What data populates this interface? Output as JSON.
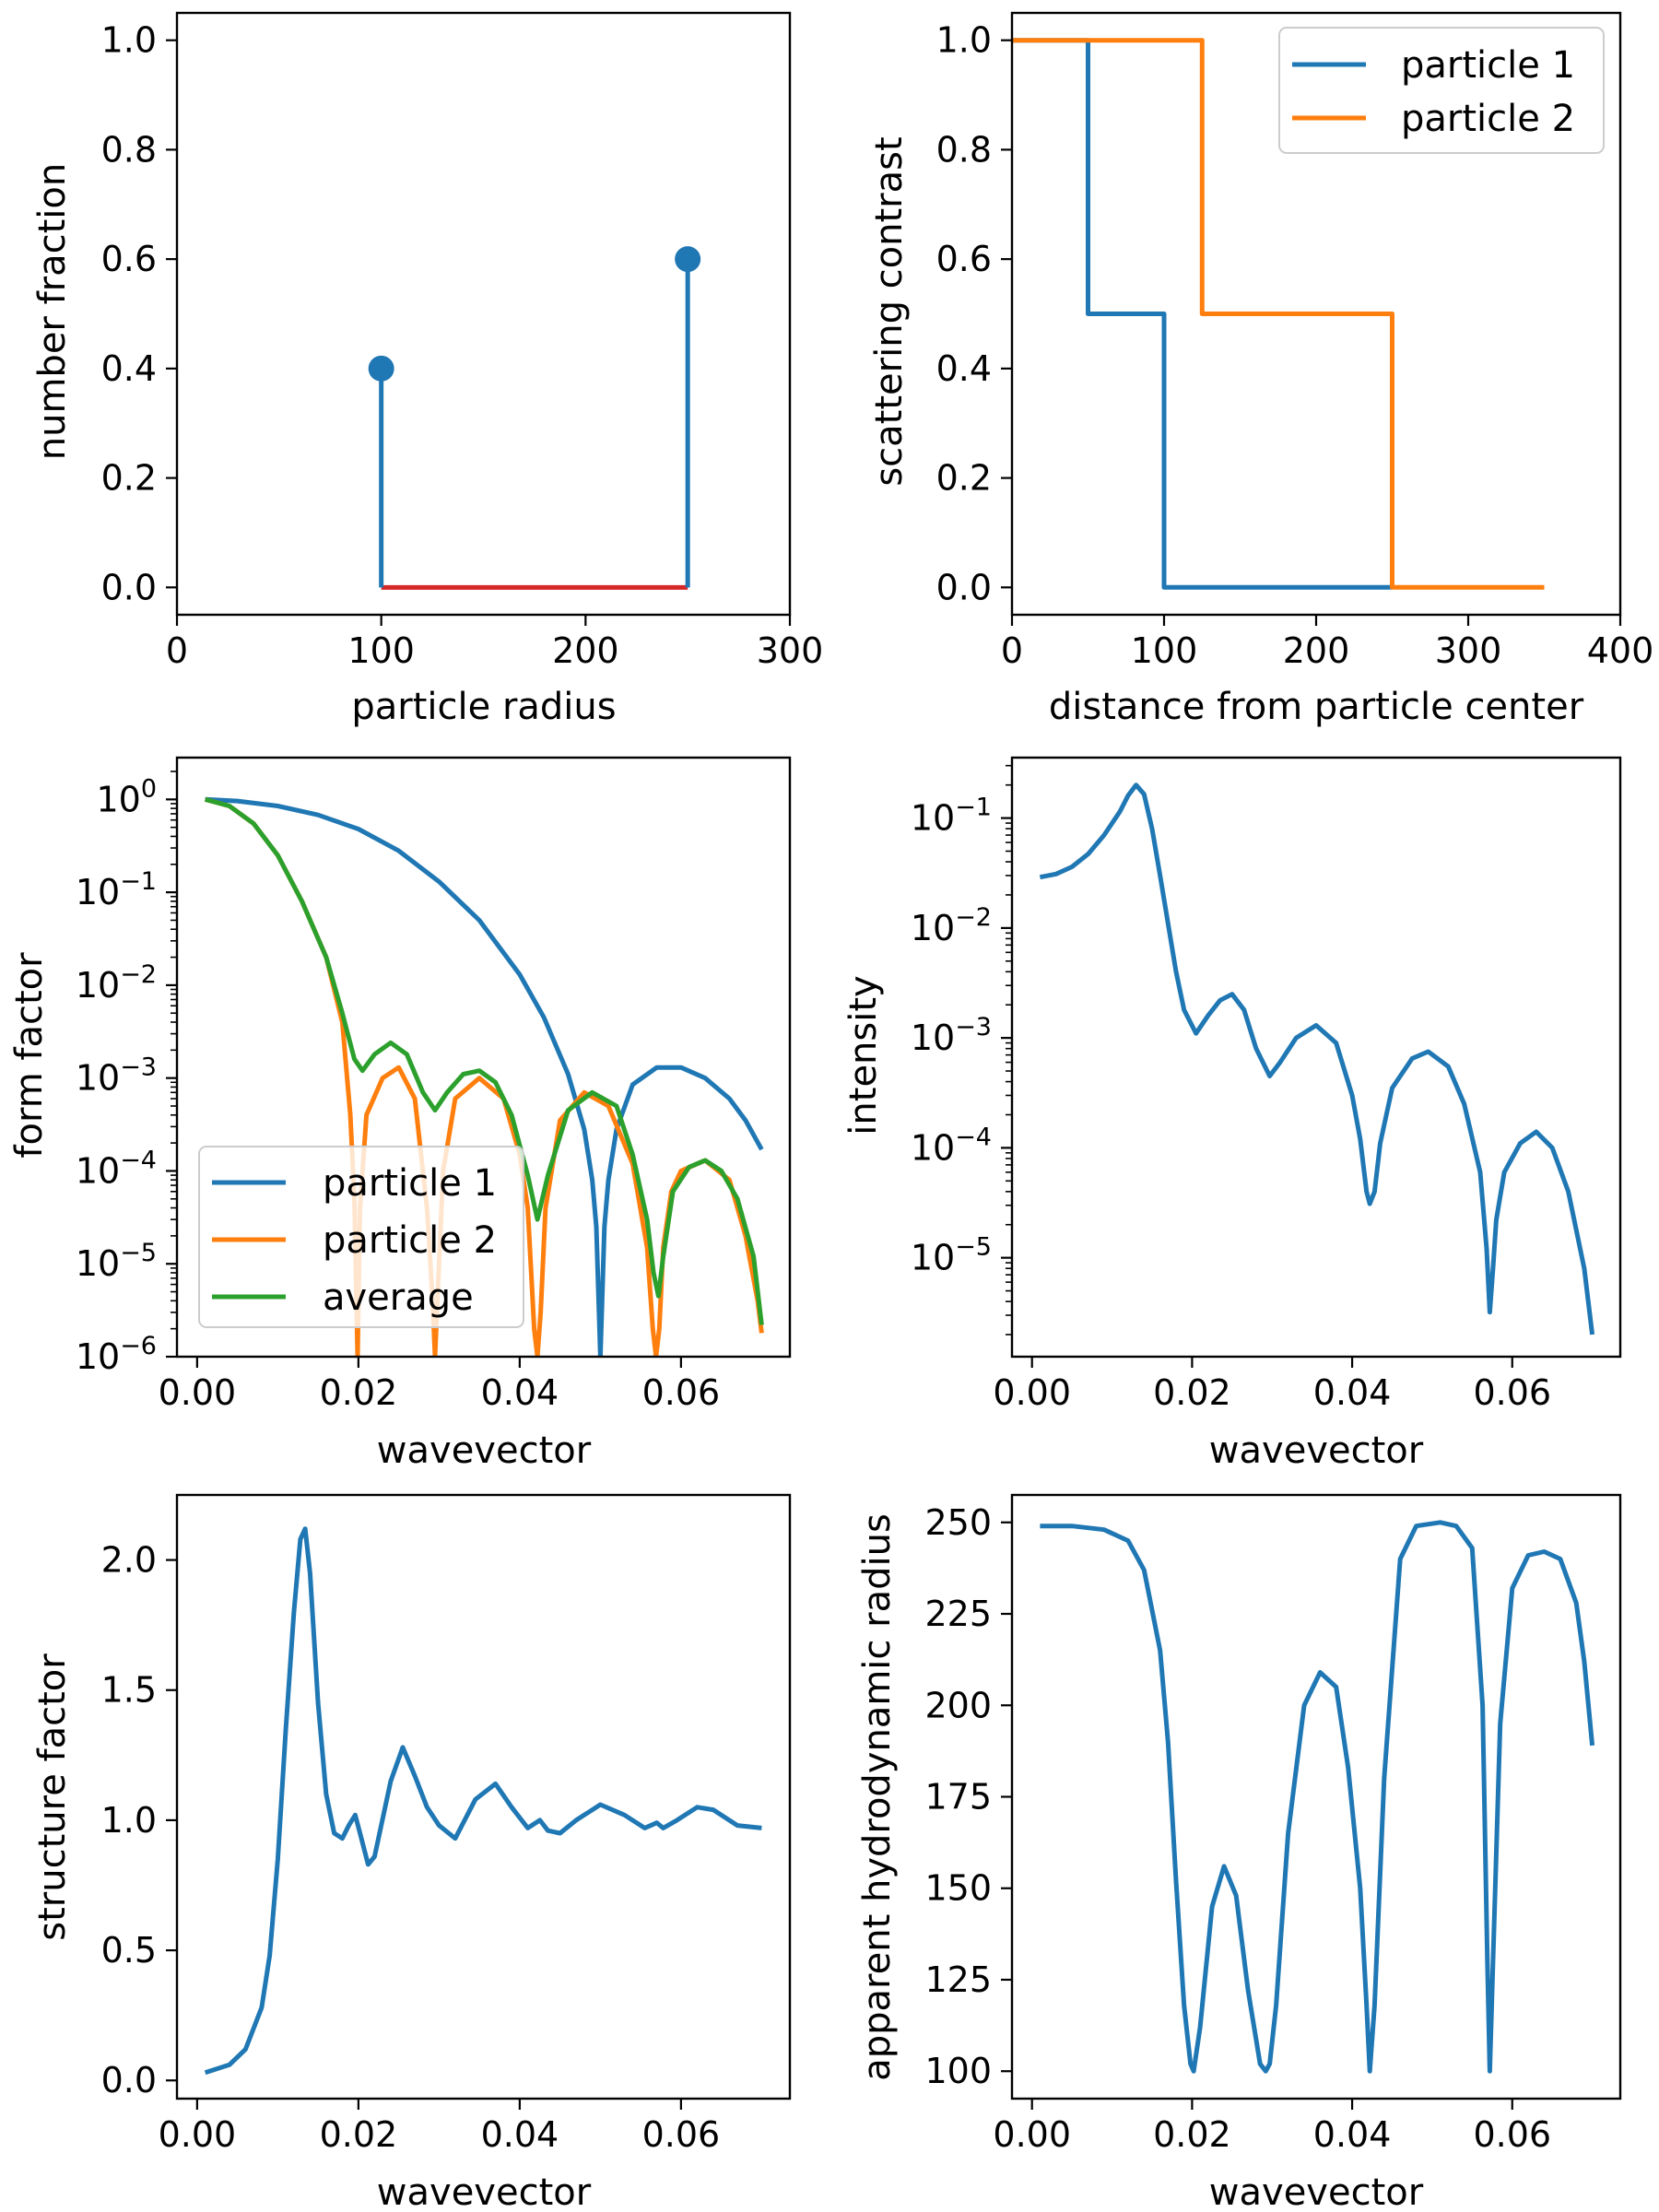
{
  "colors": {
    "c0": "#1f77b4",
    "c1": "#ff7f0e",
    "c2": "#2ca02c",
    "stem_base": "#d62728"
  },
  "chart_data": [
    {
      "id": "p1",
      "type": "stem",
      "xlabel": "particle radius",
      "ylabel": "number fraction",
      "xlim": [
        0,
        300
      ],
      "ylim": [
        -0.05,
        1.05
      ],
      "yscale": "linear",
      "xticks": [
        {
          "v": 0,
          "label": "0"
        },
        {
          "v": 100,
          "label": "100"
        },
        {
          "v": 200,
          "label": "200"
        },
        {
          "v": 300,
          "label": "300"
        }
      ],
      "yticks": [
        {
          "v": 0,
          "label": "0.0"
        },
        {
          "v": 0.2,
          "label": "0.2"
        },
        {
          "v": 0.4,
          "label": "0.4"
        },
        {
          "v": 0.6,
          "label": "0.6"
        },
        {
          "v": 0.8,
          "label": "0.8"
        },
        {
          "v": 1.0,
          "label": "1.0"
        }
      ],
      "series": [
        {
          "name": "stem",
          "color": "c0",
          "x": [
            100,
            250
          ],
          "y": [
            0.4,
            0.6
          ]
        }
      ]
    },
    {
      "id": "p2",
      "type": "line",
      "xlabel": "distance from particle center",
      "ylabel": "scattering contrast",
      "xlim": [
        0,
        400
      ],
      "ylim": [
        -0.05,
        1.05
      ],
      "yscale": "linear",
      "xticks": [
        {
          "v": 0,
          "label": "0"
        },
        {
          "v": 100,
          "label": "100"
        },
        {
          "v": 200,
          "label": "200"
        },
        {
          "v": 300,
          "label": "300"
        },
        {
          "v": 400,
          "label": "400"
        }
      ],
      "yticks": [
        {
          "v": 0,
          "label": "0.0"
        },
        {
          "v": 0.2,
          "label": "0.2"
        },
        {
          "v": 0.4,
          "label": "0.4"
        },
        {
          "v": 0.6,
          "label": "0.6"
        },
        {
          "v": 0.8,
          "label": "0.8"
        },
        {
          "v": 1.0,
          "label": "1.0"
        }
      ],
      "legend": "upper right",
      "series": [
        {
          "name": "particle 1",
          "color": "c0",
          "x": [
            0,
            50,
            50,
            100,
            100,
            250
          ],
          "y": [
            1,
            1,
            0.5,
            0.5,
            0,
            0
          ]
        },
        {
          "name": "particle 2",
          "color": "c1",
          "x": [
            0,
            125,
            125,
            250,
            250,
            350
          ],
          "y": [
            1,
            1,
            0.5,
            0.5,
            0,
            0
          ]
        }
      ]
    },
    {
      "id": "p3",
      "type": "line",
      "xlabel": "wavevector",
      "ylabel": "form factor",
      "xlim": [
        -0.0025,
        0.0735
      ],
      "ylim": [
        -6,
        0.45
      ],
      "yscale": "log",
      "xticks": [
        {
          "v": 0,
          "label": "0.00"
        },
        {
          "v": 0.02,
          "label": "0.02"
        },
        {
          "v": 0.04,
          "label": "0.04"
        },
        {
          "v": 0.06,
          "label": "0.06"
        }
      ],
      "yticks": [
        {
          "v": 0,
          "label": "10",
          "exp": "0"
        },
        {
          "v": -1,
          "label": "10",
          "exp": "−1"
        },
        {
          "v": -2,
          "label": "10",
          "exp": "−2"
        },
        {
          "v": -3,
          "label": "10",
          "exp": "−3"
        },
        {
          "v": -4,
          "label": "10",
          "exp": "−4"
        },
        {
          "v": -5,
          "label": "10",
          "exp": "−5"
        },
        {
          "v": -6,
          "label": "10",
          "exp": "−6"
        }
      ],
      "legend": "lower left",
      "series": [
        {
          "name": "particle 1",
          "color": "c0",
          "x": [
            0.001,
            0.005,
            0.01,
            0.015,
            0.02,
            0.025,
            0.03,
            0.035,
            0.04,
            0.043,
            0.046,
            0.048,
            0.049,
            0.0495,
            0.05,
            0.0505,
            0.051,
            0.052,
            0.054,
            0.057,
            0.06,
            0.063,
            0.066,
            0.068,
            0.07
          ],
          "y": [
            1.0,
            0.96,
            0.85,
            0.68,
            0.48,
            0.28,
            0.13,
            0.05,
            0.013,
            0.0045,
            0.0011,
            0.00028,
            8e-05,
            2.5e-05,
            1e-06,
            2.5e-05,
            8e-05,
            0.00028,
            0.00085,
            0.0013,
            0.0013,
            0.001,
            0.0006,
            0.00035,
            0.00017
          ]
        },
        {
          "name": "particle 2",
          "color": "c1",
          "x": [
            0.001,
            0.004,
            0.007,
            0.01,
            0.013,
            0.016,
            0.018,
            0.019,
            0.0195,
            0.0199,
            0.0202,
            0.021,
            0.023,
            0.025,
            0.027,
            0.0285,
            0.0292,
            0.0295,
            0.0298,
            0.0305,
            0.032,
            0.035,
            0.038,
            0.04,
            0.041,
            0.0418,
            0.0422,
            0.0426,
            0.0432,
            0.045,
            0.048,
            0.051,
            0.054,
            0.0558,
            0.0565,
            0.0569,
            0.0573,
            0.0578,
            0.0588,
            0.06,
            0.063,
            0.066,
            0.068,
            0.0695,
            0.07
          ],
          "y": [
            1.0,
            0.85,
            0.55,
            0.25,
            0.08,
            0.02,
            0.004,
            0.0004,
            5e-05,
            1e-06,
            4e-05,
            0.0004,
            0.001,
            0.0013,
            0.0006,
            4e-05,
            4e-06,
            1e-06,
            4e-06,
            0.0001,
            0.0006,
            0.001,
            0.0006,
            0.00015,
            4e-05,
            2e-06,
            1e-06,
            3e-06,
            4e-05,
            0.00035,
            0.0007,
            0.0005,
            0.00012,
            1.5e-05,
            2e-06,
            1e-06,
            2e-06,
            1.5e-05,
            6e-05,
            0.0001,
            0.00013,
            8e-05,
            2e-05,
            4e-06,
            1.8e-06
          ]
        },
        {
          "name": "average",
          "color": "c2",
          "x": [
            0.001,
            0.004,
            0.007,
            0.01,
            0.013,
            0.016,
            0.018,
            0.0195,
            0.0205,
            0.022,
            0.024,
            0.026,
            0.028,
            0.0295,
            0.031,
            0.033,
            0.035,
            0.037,
            0.039,
            0.041,
            0.0422,
            0.0435,
            0.046,
            0.049,
            0.052,
            0.054,
            0.0558,
            0.0566,
            0.0572,
            0.0578,
            0.059,
            0.061,
            0.063,
            0.065,
            0.067,
            0.069,
            0.07
          ],
          "y": [
            1.0,
            0.85,
            0.55,
            0.25,
            0.08,
            0.02,
            0.005,
            0.0016,
            0.0012,
            0.0018,
            0.0024,
            0.0018,
            0.0007,
            0.00045,
            0.0007,
            0.0011,
            0.0012,
            0.0009,
            0.0004,
            9e-05,
            3e-05,
            9e-05,
            0.00045,
            0.0007,
            0.0005,
            0.00015,
            3e-05,
            8e-06,
            4.5e-06,
            1.2e-05,
            6e-05,
            0.00011,
            0.00013,
            0.0001,
            5e-05,
            1.2e-05,
            2.2e-06
          ]
        }
      ]
    },
    {
      "id": "p4",
      "type": "line",
      "xlabel": "wavevector",
      "ylabel": "intensity",
      "xlim": [
        -0.0025,
        0.0735
      ],
      "ylim": [
        -5.9,
        -0.45
      ],
      "yscale": "log",
      "xticks": [
        {
          "v": 0,
          "label": "0.00"
        },
        {
          "v": 0.02,
          "label": "0.02"
        },
        {
          "v": 0.04,
          "label": "0.04"
        },
        {
          "v": 0.06,
          "label": "0.06"
        }
      ],
      "yticks": [
        {
          "v": -1,
          "label": "10",
          "exp": "−1"
        },
        {
          "v": -2,
          "label": "10",
          "exp": "−2"
        },
        {
          "v": -3,
          "label": "10",
          "exp": "−3"
        },
        {
          "v": -4,
          "label": "10",
          "exp": "−4"
        },
        {
          "v": -5,
          "label": "10",
          "exp": "−5"
        }
      ],
      "series": [
        {
          "name": "intensity",
          "color": "c0",
          "x": [
            0.001,
            0.003,
            0.005,
            0.007,
            0.009,
            0.011,
            0.012,
            0.013,
            0.014,
            0.015,
            0.016,
            0.017,
            0.018,
            0.019,
            0.0205,
            0.022,
            0.0235,
            0.025,
            0.0265,
            0.028,
            0.0297,
            0.031,
            0.033,
            0.0355,
            0.038,
            0.04,
            0.041,
            0.0418,
            0.0422,
            0.0428,
            0.0435,
            0.045,
            0.0475,
            0.0495,
            0.052,
            0.054,
            0.056,
            0.0568,
            0.0572,
            0.0576,
            0.058,
            0.059,
            0.061,
            0.063,
            0.065,
            0.067,
            0.069,
            0.07
          ],
          "y": [
            0.029,
            0.031,
            0.036,
            0.047,
            0.07,
            0.115,
            0.16,
            0.2,
            0.165,
            0.08,
            0.03,
            0.011,
            0.004,
            0.0018,
            0.0011,
            0.0016,
            0.0022,
            0.0025,
            0.0018,
            0.0008,
            0.00045,
            0.0006,
            0.001,
            0.0013,
            0.0009,
            0.0003,
            0.00012,
            4e-05,
            3.1e-05,
            4e-05,
            0.00011,
            0.00035,
            0.00065,
            0.00075,
            0.00055,
            0.00025,
            6e-05,
            1.2e-05,
            3.2e-06,
            8e-06,
            2.2e-05,
            6e-05,
            0.00011,
            0.00014,
            0.0001,
            4e-05,
            8e-06,
            2e-06
          ]
        }
      ]
    },
    {
      "id": "p5",
      "type": "line",
      "xlabel": "wavevector",
      "ylabel": "structure factor",
      "xlim": [
        -0.0025,
        0.0735
      ],
      "ylim": [
        -0.07,
        2.25
      ],
      "yscale": "linear",
      "xticks": [
        {
          "v": 0,
          "label": "0.00"
        },
        {
          "v": 0.02,
          "label": "0.02"
        },
        {
          "v": 0.04,
          "label": "0.04"
        },
        {
          "v": 0.06,
          "label": "0.06"
        }
      ],
      "yticks": [
        {
          "v": 0,
          "label": "0.0"
        },
        {
          "v": 0.5,
          "label": "0.5"
        },
        {
          "v": 1.0,
          "label": "1.0"
        },
        {
          "v": 1.5,
          "label": "1.5"
        },
        {
          "v": 2.0,
          "label": "2.0"
        }
      ],
      "series": [
        {
          "name": "structure factor",
          "color": "c0",
          "x": [
            0.001,
            0.004,
            0.006,
            0.008,
            0.009,
            0.01,
            0.011,
            0.012,
            0.0128,
            0.0134,
            0.014,
            0.015,
            0.016,
            0.017,
            0.018,
            0.0188,
            0.0196,
            0.0202,
            0.0212,
            0.022,
            0.024,
            0.0255,
            0.027,
            0.0285,
            0.03,
            0.032,
            0.0345,
            0.037,
            0.039,
            0.041,
            0.0425,
            0.0435,
            0.045,
            0.047,
            0.05,
            0.053,
            0.0555,
            0.057,
            0.0578,
            0.0595,
            0.062,
            0.064,
            0.067,
            0.07
          ],
          "y": [
            0.03,
            0.06,
            0.12,
            0.28,
            0.48,
            0.85,
            1.35,
            1.8,
            2.08,
            2.12,
            1.95,
            1.45,
            1.1,
            0.95,
            0.93,
            0.98,
            1.02,
            0.95,
            0.83,
            0.86,
            1.15,
            1.28,
            1.17,
            1.05,
            0.98,
            0.93,
            1.08,
            1.14,
            1.05,
            0.97,
            1.0,
            0.96,
            0.95,
            1.0,
            1.06,
            1.02,
            0.97,
            0.99,
            0.97,
            1.0,
            1.05,
            1.04,
            0.98,
            0.97
          ]
        }
      ]
    },
    {
      "id": "p6",
      "type": "line",
      "xlabel": "wavevector",
      "ylabel": "apparent hydrodynamic radius",
      "xlim": [
        -0.0025,
        0.0735
      ],
      "ylim": [
        92.5,
        257.5
      ],
      "yscale": "linear",
      "xticks": [
        {
          "v": 0,
          "label": "0.00"
        },
        {
          "v": 0.02,
          "label": "0.02"
        },
        {
          "v": 0.04,
          "label": "0.04"
        },
        {
          "v": 0.06,
          "label": "0.06"
        }
      ],
      "yticks": [
        {
          "v": 100,
          "label": "100"
        },
        {
          "v": 125,
          "label": "125"
        },
        {
          "v": 150,
          "label": "150"
        },
        {
          "v": 175,
          "label": "175"
        },
        {
          "v": 200,
          "label": "200"
        },
        {
          "v": 225,
          "label": "225"
        },
        {
          "v": 250,
          "label": "250"
        }
      ],
      "series": [
        {
          "name": "apparent hydrodynamic radius",
          "color": "c0",
          "x": [
            0.001,
            0.005,
            0.009,
            0.012,
            0.014,
            0.016,
            0.017,
            0.018,
            0.019,
            0.0198,
            0.0202,
            0.021,
            0.0225,
            0.024,
            0.0255,
            0.027,
            0.0285,
            0.0292,
            0.0297,
            0.0305,
            0.032,
            0.034,
            0.036,
            0.038,
            0.0395,
            0.041,
            0.0418,
            0.0422,
            0.0428,
            0.044,
            0.046,
            0.048,
            0.051,
            0.053,
            0.055,
            0.0563,
            0.0569,
            0.0572,
            0.0576,
            0.0585,
            0.06,
            0.062,
            0.064,
            0.066,
            0.068,
            0.069,
            0.07
          ],
          "y": [
            249,
            249,
            248,
            245,
            237,
            215,
            190,
            152,
            118,
            102,
            100,
            112,
            145,
            156,
            148,
            122,
            102,
            100,
            102,
            118,
            165,
            200,
            209,
            205,
            183,
            150,
            118,
            100,
            118,
            180,
            240,
            249,
            250,
            249,
            243,
            200,
            130,
            100,
            130,
            195,
            232,
            241,
            242,
            240,
            228,
            212,
            189
          ]
        }
      ]
    }
  ]
}
